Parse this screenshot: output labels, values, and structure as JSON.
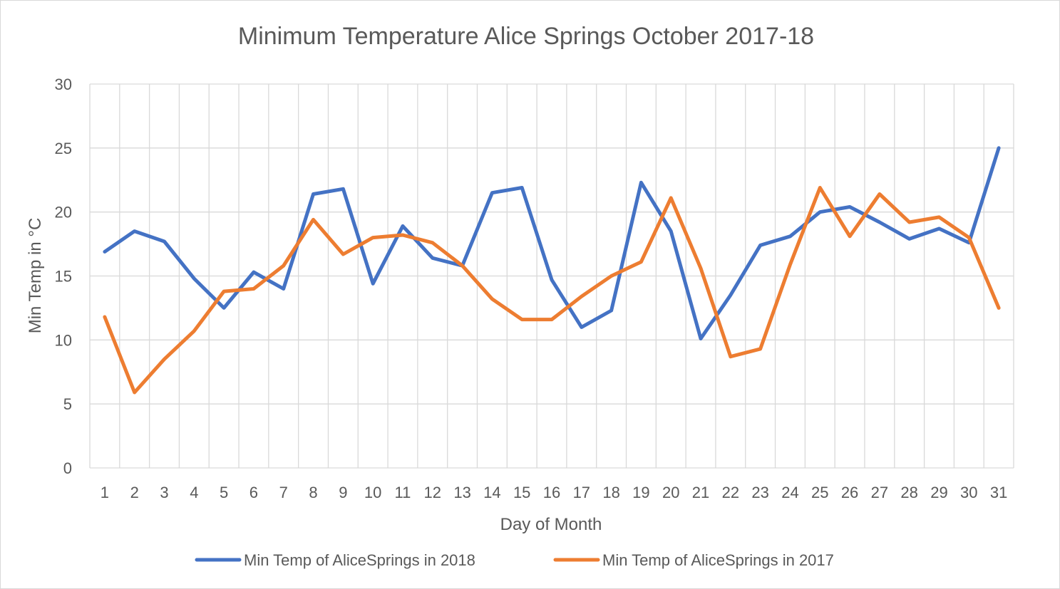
{
  "chart_data": {
    "type": "line",
    "title": "Minimum Temperature Alice Springs October 2017-18",
    "xlabel": "Day of Month",
    "ylabel": "Min Temp in °C",
    "ylim": [
      0,
      30
    ],
    "yticks": [
      0,
      5,
      10,
      15,
      20,
      25,
      30
    ],
    "grid": true,
    "legend_position": "bottom",
    "categories": [
      "1",
      "2",
      "3",
      "4",
      "5",
      "6",
      "7",
      "8",
      "9",
      "10",
      "11",
      "12",
      "13",
      "14",
      "15",
      "16",
      "17",
      "18",
      "19",
      "20",
      "21",
      "22",
      "23",
      "24",
      "25",
      "26",
      "27",
      "28",
      "29",
      "30",
      "31"
    ],
    "series": [
      {
        "name": "Min Temp of AliceSprings  in 2018",
        "color": "#4472c4",
        "values": [
          16.9,
          18.5,
          17.7,
          14.8,
          12.5,
          15.3,
          14.0,
          21.4,
          21.8,
          14.4,
          18.9,
          16.4,
          15.8,
          21.5,
          21.9,
          14.7,
          11.0,
          12.3,
          22.3,
          18.5,
          10.1,
          13.5,
          17.4,
          18.1,
          20.0,
          20.4,
          19.2,
          17.9,
          18.7,
          17.6,
          25.0
        ]
      },
      {
        "name": "Min Temp of AliceSprings in 2017",
        "color": "#ed7d31",
        "values": [
          11.8,
          5.9,
          8.5,
          10.7,
          13.8,
          14.0,
          15.8,
          19.4,
          16.7,
          18.0,
          18.2,
          17.6,
          15.8,
          13.2,
          11.6,
          11.6,
          13.4,
          15.0,
          16.1,
          21.1,
          15.6,
          8.7,
          9.3,
          15.9,
          21.9,
          18.1,
          21.4,
          19.2,
          19.6,
          18.0,
          12.5
        ]
      }
    ]
  }
}
